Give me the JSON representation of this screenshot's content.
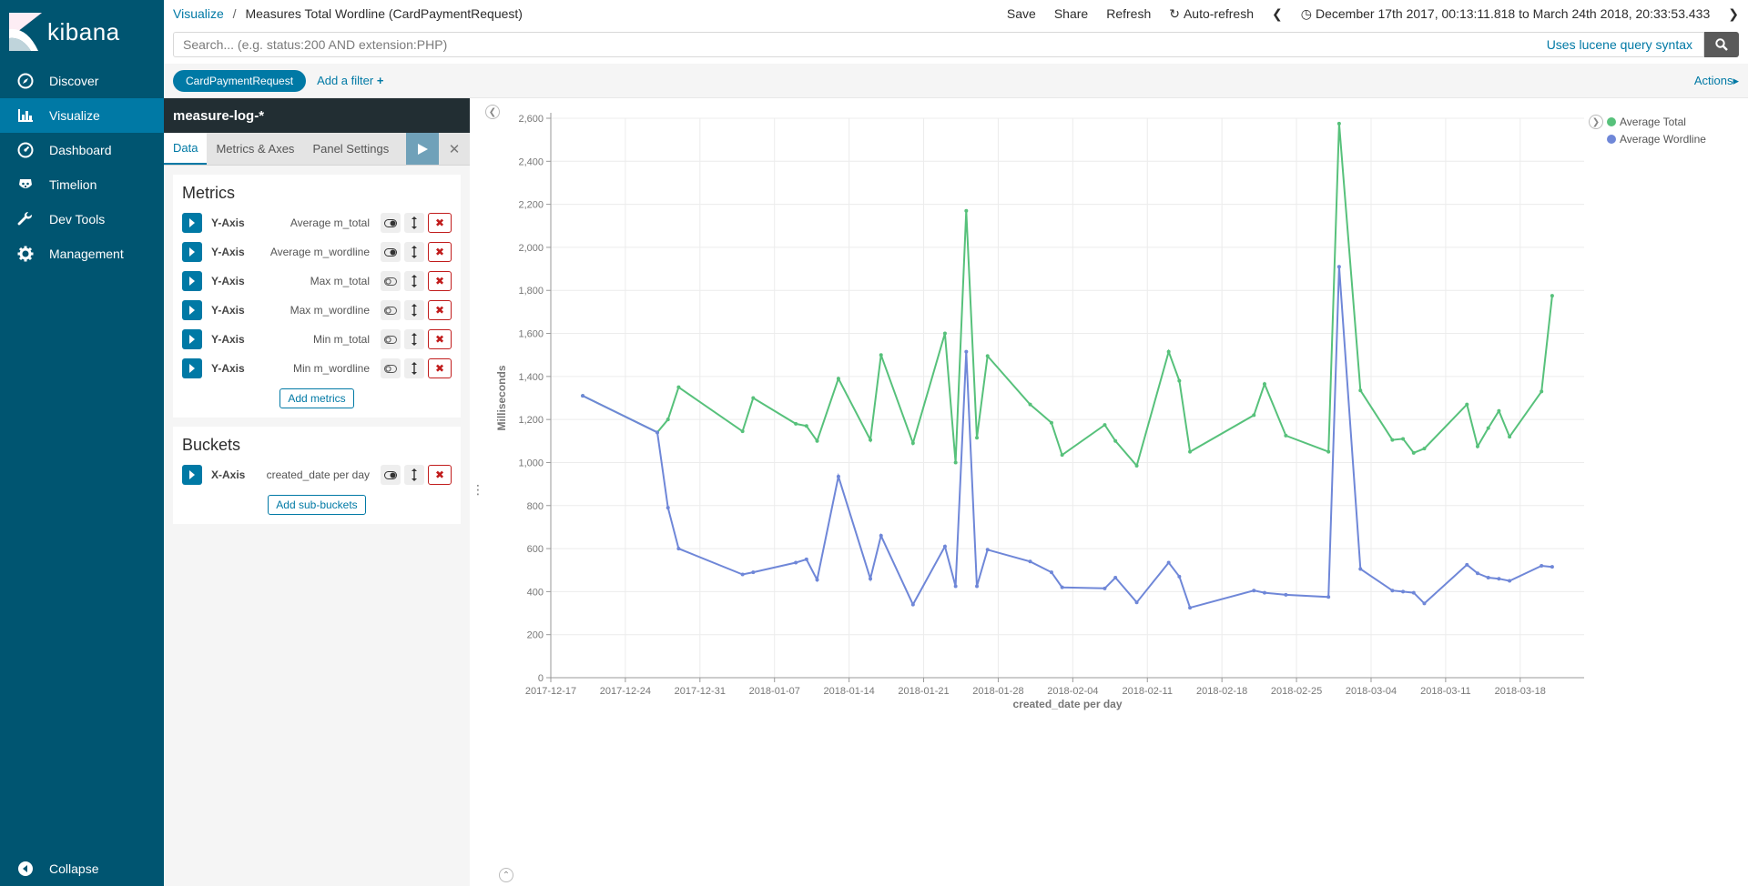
{
  "sidebar": {
    "brand": "kibana",
    "items": [
      {
        "label": "Discover",
        "icon": "compass-icon",
        "active": false
      },
      {
        "label": "Visualize",
        "icon": "bar-chart-icon",
        "active": true
      },
      {
        "label": "Dashboard",
        "icon": "dashboard-icon",
        "active": false
      },
      {
        "label": "Timelion",
        "icon": "timelion-icon",
        "active": false
      },
      {
        "label": "Dev Tools",
        "icon": "wrench-icon",
        "active": false
      },
      {
        "label": "Management",
        "icon": "gear-icon",
        "active": false
      }
    ],
    "collapse_label": "Collapse"
  },
  "topbar": {
    "breadcrumb_root": "Visualize",
    "breadcrumb_sep": "/",
    "title": "Measures Total Wordline (CardPaymentRequest)",
    "save": "Save",
    "share": "Share",
    "refresh": "Refresh",
    "auto_refresh": "Auto-refresh",
    "time_range": "December 17th 2017, 00:13:11.818 to March 24th 2018, 20:33:53.433"
  },
  "query": {
    "placeholder": "Search... (e.g. status:200 AND extension:PHP)",
    "value": "",
    "syntax_link": "Uses lucene query syntax"
  },
  "filters": {
    "pills": [
      "CardPaymentRequest"
    ],
    "add_filter": "Add a filter",
    "add_filter_plus": "+",
    "actions": "Actions"
  },
  "editor": {
    "index_pattern": "measure-log-*",
    "tabs": [
      "Data",
      "Metrics & Axes",
      "Panel Settings"
    ],
    "metrics_title": "Metrics",
    "metrics": [
      {
        "type": "Y-Axis",
        "desc": "Average m_total",
        "enabled": true
      },
      {
        "type": "Y-Axis",
        "desc": "Average m_wordline",
        "enabled": true
      },
      {
        "type": "Y-Axis",
        "desc": "Max m_total",
        "enabled": false
      },
      {
        "type": "Y-Axis",
        "desc": "Max m_wordline",
        "enabled": false
      },
      {
        "type": "Y-Axis",
        "desc": "Min m_total",
        "enabled": false
      },
      {
        "type": "Y-Axis",
        "desc": "Min m_wordline",
        "enabled": false
      }
    ],
    "add_metrics": "Add metrics",
    "buckets_title": "Buckets",
    "buckets": [
      {
        "type": "X-Axis",
        "desc": "created_date per day",
        "enabled": true
      }
    ],
    "add_sub_buckets": "Add sub-buckets"
  },
  "colors": {
    "sidebar_bg": "#005571",
    "sidebar_active": "#0079a5",
    "accent": "#0079a5",
    "series_total": "#57c17b",
    "series_wordline": "#6f87d8"
  },
  "chart_data": {
    "type": "line",
    "xlabel": "created_date per day",
    "ylabel": "Milliseconds",
    "ylim": [
      0,
      2600
    ],
    "yticks": [
      0,
      200,
      400,
      600,
      800,
      1000,
      1200,
      1400,
      1600,
      1800,
      2000,
      2200,
      2400,
      2600
    ],
    "ytick_labels": [
      "0",
      "200",
      "400",
      "600",
      "800",
      "1,000",
      "1,200",
      "1,400",
      "1,600",
      "1,800",
      "2,000",
      "2,200",
      "2,400",
      "2,600"
    ],
    "xlim": [
      "2017-12-17",
      "2018-03-24"
    ],
    "xticks": [
      "2017-12-17",
      "2017-12-24",
      "2017-12-31",
      "2018-01-07",
      "2018-01-14",
      "2018-01-21",
      "2018-01-28",
      "2018-02-04",
      "2018-02-11",
      "2018-02-18",
      "2018-02-25",
      "2018-03-04",
      "2018-03-11",
      "2018-03-18"
    ],
    "grid": true,
    "legend_position": "top-right",
    "series": [
      {
        "name": "Average Total",
        "color": "#57c17b",
        "points": [
          [
            "2017-12-20",
            1310
          ],
          [
            "2017-12-27",
            1140
          ],
          [
            "2017-12-28",
            1200
          ],
          [
            "2017-12-29",
            1350
          ],
          [
            "2018-01-04",
            1145
          ],
          [
            "2018-01-05",
            1300
          ],
          [
            "2018-01-09",
            1180
          ],
          [
            "2018-01-10",
            1170
          ],
          [
            "2018-01-11",
            1100
          ],
          [
            "2018-01-13",
            1390
          ],
          [
            "2018-01-16",
            1105
          ],
          [
            "2018-01-17",
            1500
          ],
          [
            "2018-01-20",
            1090
          ],
          [
            "2018-01-23",
            1600
          ],
          [
            "2018-01-24",
            1000
          ],
          [
            "2018-01-25",
            2170
          ],
          [
            "2018-01-26",
            1115
          ],
          [
            "2018-01-27",
            1495
          ],
          [
            "2018-01-31",
            1270
          ],
          [
            "2018-02-02",
            1185
          ],
          [
            "2018-02-03",
            1035
          ],
          [
            "2018-02-07",
            1175
          ],
          [
            "2018-02-08",
            1100
          ],
          [
            "2018-02-10",
            985
          ],
          [
            "2018-02-13",
            1515
          ],
          [
            "2018-02-14",
            1380
          ],
          [
            "2018-02-15",
            1050
          ],
          [
            "2018-02-21",
            1220
          ],
          [
            "2018-02-22",
            1365
          ],
          [
            "2018-02-24",
            1125
          ],
          [
            "2018-02-28",
            1050
          ],
          [
            "2018-03-01",
            2575
          ],
          [
            "2018-03-03",
            1335
          ],
          [
            "2018-03-06",
            1105
          ],
          [
            "2018-03-07",
            1110
          ],
          [
            "2018-03-08",
            1045
          ],
          [
            "2018-03-09",
            1065
          ],
          [
            "2018-03-13",
            1270
          ],
          [
            "2018-03-14",
            1075
          ],
          [
            "2018-03-15",
            1160
          ],
          [
            "2018-03-16",
            1240
          ],
          [
            "2018-03-17",
            1120
          ],
          [
            "2018-03-20",
            1330
          ],
          [
            "2018-03-21",
            1775
          ]
        ]
      },
      {
        "name": "Average Wordline",
        "color": "#6f87d8",
        "points": [
          [
            "2017-12-20",
            1310
          ],
          [
            "2017-12-27",
            1140
          ],
          [
            "2017-12-28",
            790
          ],
          [
            "2017-12-29",
            600
          ],
          [
            "2018-01-04",
            480
          ],
          [
            "2018-01-05",
            490
          ],
          [
            "2018-01-09",
            535
          ],
          [
            "2018-01-10",
            550
          ],
          [
            "2018-01-11",
            455
          ],
          [
            "2018-01-13",
            935
          ],
          [
            "2018-01-16",
            460
          ],
          [
            "2018-01-17",
            660
          ],
          [
            "2018-01-20",
            340
          ],
          [
            "2018-01-23",
            610
          ],
          [
            "2018-01-24",
            425
          ],
          [
            "2018-01-25",
            1515
          ],
          [
            "2018-01-26",
            425
          ],
          [
            "2018-01-27",
            595
          ],
          [
            "2018-01-31",
            540
          ],
          [
            "2018-02-02",
            490
          ],
          [
            "2018-02-03",
            420
          ],
          [
            "2018-02-07",
            415
          ],
          [
            "2018-02-08",
            465
          ],
          [
            "2018-02-10",
            350
          ],
          [
            "2018-02-13",
            535
          ],
          [
            "2018-02-14",
            470
          ],
          [
            "2018-02-15",
            325
          ],
          [
            "2018-02-21",
            405
          ],
          [
            "2018-02-22",
            395
          ],
          [
            "2018-02-24",
            385
          ],
          [
            "2018-02-28",
            375
          ],
          [
            "2018-03-01",
            1910
          ],
          [
            "2018-03-03",
            505
          ],
          [
            "2018-03-06",
            405
          ],
          [
            "2018-03-07",
            400
          ],
          [
            "2018-03-08",
            395
          ],
          [
            "2018-03-09",
            345
          ],
          [
            "2018-03-13",
            525
          ],
          [
            "2018-03-14",
            485
          ],
          [
            "2018-03-15",
            465
          ],
          [
            "2018-03-16",
            460
          ],
          [
            "2018-03-17",
            450
          ],
          [
            "2018-03-20",
            520
          ],
          [
            "2018-03-21",
            515
          ]
        ]
      }
    ]
  }
}
